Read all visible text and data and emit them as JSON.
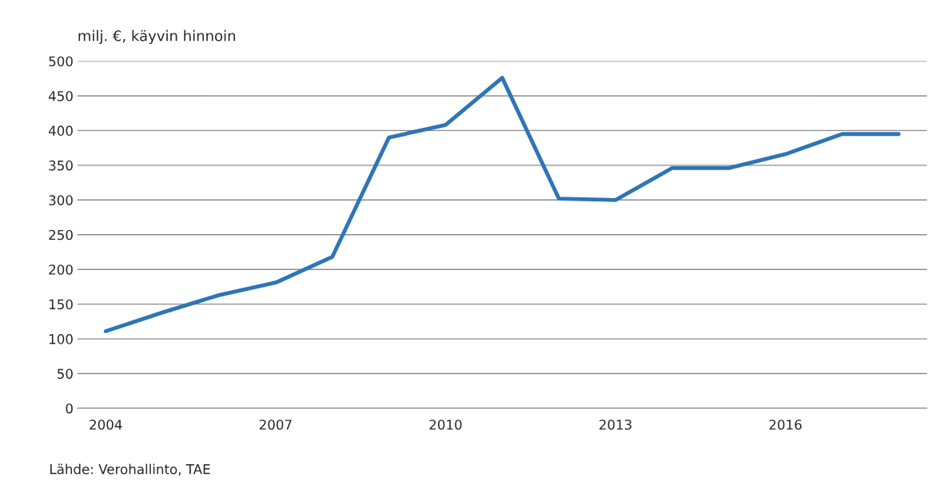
{
  "chart_data": {
    "type": "line",
    "ylabel": "milj. €, käyvin hinnoin",
    "categories": [
      "2004",
      null,
      null,
      "2007",
      null,
      null,
      "2010",
      null,
      null,
      "2013",
      null,
      null,
      "2016",
      null,
      null
    ],
    "series": [
      {
        "color": "#2e75b6",
        "values": [
          111,
          138,
          163,
          181,
          218,
          390,
          408,
          476,
          302,
          300,
          346,
          346,
          366,
          395,
          395
        ]
      }
    ],
    "ylim": [
      0,
      500
    ],
    "yticks": [
      0,
      50,
      100,
      150,
      200,
      250,
      300,
      350,
      400,
      450,
      500
    ],
    "grid": "y",
    "legend": false,
    "marker": "none",
    "line_style": "solid",
    "annotations": [
      "Lähde: Verohallinto, TAE"
    ]
  }
}
